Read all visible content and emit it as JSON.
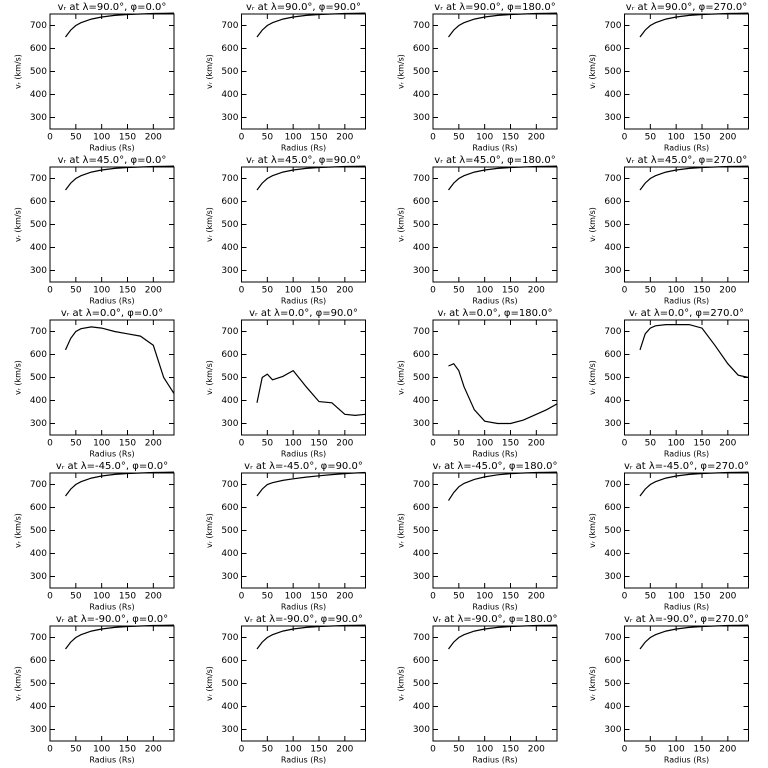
{
  "chart_data": [
    {
      "type": "line",
      "title": "vᵣ at λ=90.0°, φ=0.0°",
      "x_label": "Radius (Rs)",
      "y_label": "vᵣ (km/s)",
      "x": [
        30,
        40,
        50,
        60,
        80,
        100,
        125,
        150,
        175,
        200,
        220,
        240
      ],
      "values": [
        650,
        680,
        700,
        712,
        728,
        737,
        744,
        748,
        750,
        752,
        753,
        754
      ],
      "xlim": [
        0,
        240
      ],
      "ylim": [
        250,
        750
      ],
      "xticks": [
        0,
        50,
        100,
        150,
        200
      ],
      "yticks": [
        300,
        400,
        500,
        600,
        700
      ],
      "color": "#000000"
    },
    {
      "type": "line",
      "title": "vᵣ at λ=90.0°, φ=90.0°",
      "x_label": "Radius (Rs)",
      "y_label": "vᵣ (km/s)",
      "x": [
        30,
        40,
        50,
        60,
        80,
        100,
        125,
        150,
        175,
        200,
        220,
        240
      ],
      "values": [
        650,
        680,
        700,
        712,
        728,
        737,
        744,
        748,
        750,
        752,
        753,
        754
      ],
      "xlim": [
        0,
        240
      ],
      "ylim": [
        250,
        750
      ],
      "xticks": [
        0,
        50,
        100,
        150,
        200
      ],
      "yticks": [
        300,
        400,
        500,
        600,
        700
      ],
      "color": "#000000"
    },
    {
      "type": "line",
      "title": "vᵣ at λ=90.0°, φ=180.0°",
      "x_label": "Radius (Rs)",
      "y_label": "vᵣ (km/s)",
      "x": [
        30,
        40,
        50,
        60,
        80,
        100,
        125,
        150,
        175,
        200,
        220,
        240
      ],
      "values": [
        650,
        680,
        700,
        712,
        728,
        737,
        744,
        748,
        750,
        752,
        753,
        754
      ],
      "xlim": [
        0,
        240
      ],
      "ylim": [
        250,
        750
      ],
      "xticks": [
        0,
        50,
        100,
        150,
        200
      ],
      "yticks": [
        300,
        400,
        500,
        600,
        700
      ],
      "color": "#000000"
    },
    {
      "type": "line",
      "title": "vᵣ at λ=90.0°, φ=270.0°",
      "x_label": "Radius (Rs)",
      "y_label": "vᵣ (km/s)",
      "x": [
        30,
        40,
        50,
        60,
        80,
        100,
        125,
        150,
        175,
        200,
        220,
        240
      ],
      "values": [
        650,
        680,
        700,
        712,
        728,
        737,
        744,
        748,
        750,
        752,
        753,
        754
      ],
      "xlim": [
        0,
        240
      ],
      "ylim": [
        250,
        750
      ],
      "xticks": [
        0,
        50,
        100,
        150,
        200
      ],
      "yticks": [
        300,
        400,
        500,
        600,
        700
      ],
      "color": "#000000"
    },
    {
      "type": "line",
      "title": "vᵣ at λ=45.0°, φ=0.0°",
      "x_label": "Radius (Rs)",
      "y_label": "vᵣ (km/s)",
      "x": [
        30,
        40,
        50,
        60,
        80,
        100,
        125,
        150,
        175,
        200,
        220,
        240
      ],
      "values": [
        650,
        680,
        700,
        712,
        728,
        737,
        744,
        748,
        750,
        752,
        753,
        754
      ],
      "xlim": [
        0,
        240
      ],
      "ylim": [
        250,
        750
      ],
      "xticks": [
        0,
        50,
        100,
        150,
        200
      ],
      "yticks": [
        300,
        400,
        500,
        600,
        700
      ],
      "color": "#000000"
    },
    {
      "type": "line",
      "title": "vᵣ at λ=45.0°, φ=90.0°",
      "x_label": "Radius (Rs)",
      "y_label": "vᵣ (km/s)",
      "x": [
        30,
        40,
        50,
        60,
        80,
        100,
        125,
        150,
        175,
        200,
        220,
        240
      ],
      "values": [
        650,
        680,
        700,
        712,
        728,
        737,
        744,
        748,
        750,
        752,
        753,
        754
      ],
      "xlim": [
        0,
        240
      ],
      "ylim": [
        250,
        750
      ],
      "xticks": [
        0,
        50,
        100,
        150,
        200
      ],
      "yticks": [
        300,
        400,
        500,
        600,
        700
      ],
      "color": "#000000"
    },
    {
      "type": "line",
      "title": "vᵣ at λ=45.0°, φ=180.0°",
      "x_label": "Radius (Rs)",
      "y_label": "vᵣ (km/s)",
      "x": [
        30,
        40,
        50,
        60,
        80,
        100,
        125,
        150,
        175,
        200,
        220,
        240
      ],
      "values": [
        650,
        680,
        700,
        712,
        728,
        737,
        744,
        748,
        750,
        752,
        753,
        754
      ],
      "xlim": [
        0,
        240
      ],
      "ylim": [
        250,
        750
      ],
      "xticks": [
        0,
        50,
        100,
        150,
        200
      ],
      "yticks": [
        300,
        400,
        500,
        600,
        700
      ],
      "color": "#000000"
    },
    {
      "type": "line",
      "title": "vᵣ at λ=45.0°, φ=270.0°",
      "x_label": "Radius (Rs)",
      "y_label": "vᵣ (km/s)",
      "x": [
        30,
        40,
        50,
        60,
        80,
        100,
        125,
        150,
        175,
        200,
        220,
        240
      ],
      "values": [
        650,
        680,
        700,
        712,
        728,
        737,
        744,
        748,
        750,
        752,
        753,
        754
      ],
      "xlim": [
        0,
        240
      ],
      "ylim": [
        250,
        750
      ],
      "xticks": [
        0,
        50,
        100,
        150,
        200
      ],
      "yticks": [
        300,
        400,
        500,
        600,
        700
      ],
      "color": "#000000"
    },
    {
      "type": "line",
      "title": "vᵣ at λ=0.0°, φ=0.0°",
      "x_label": "Radius (Rs)",
      "y_label": "vᵣ (km/s)",
      "x": [
        30,
        40,
        50,
        60,
        80,
        100,
        125,
        150,
        175,
        200,
        220,
        240
      ],
      "values": [
        620,
        670,
        700,
        712,
        720,
        715,
        700,
        690,
        680,
        640,
        500,
        430
      ],
      "xlim": [
        0,
        240
      ],
      "ylim": [
        250,
        750
      ],
      "xticks": [
        0,
        50,
        100,
        150,
        200
      ],
      "yticks": [
        300,
        400,
        500,
        600,
        700
      ],
      "color": "#000000"
    },
    {
      "type": "line",
      "title": "vᵣ at λ=0.0°, φ=90.0°",
      "x_label": "Radius (Rs)",
      "y_label": "vᵣ (km/s)",
      "x": [
        30,
        40,
        50,
        60,
        80,
        100,
        125,
        150,
        175,
        200,
        220,
        240
      ],
      "values": [
        390,
        500,
        515,
        490,
        505,
        530,
        460,
        395,
        390,
        340,
        335,
        340
      ],
      "xlim": [
        0,
        240
      ],
      "ylim": [
        250,
        750
      ],
      "xticks": [
        0,
        50,
        100,
        150,
        200
      ],
      "yticks": [
        300,
        400,
        500,
        600,
        700
      ],
      "color": "#000000"
    },
    {
      "type": "line",
      "title": "vᵣ at λ=0.0°, φ=180.0°",
      "x_label": "Radius (Rs)",
      "y_label": "vᵣ (km/s)",
      "x": [
        30,
        40,
        50,
        60,
        80,
        100,
        125,
        150,
        175,
        200,
        220,
        240
      ],
      "values": [
        550,
        560,
        530,
        460,
        360,
        310,
        300,
        300,
        315,
        340,
        360,
        385
      ],
      "xlim": [
        0,
        240
      ],
      "ylim": [
        250,
        750
      ],
      "xticks": [
        0,
        50,
        100,
        150,
        200
      ],
      "yticks": [
        300,
        400,
        500,
        600,
        700
      ],
      "color": "#000000"
    },
    {
      "type": "line",
      "title": "vᵣ at λ=0.0°, φ=270.0°",
      "x_label": "Radius (Rs)",
      "y_label": "vᵣ (km/s)",
      "x": [
        30,
        40,
        50,
        60,
        80,
        100,
        125,
        150,
        175,
        200,
        220,
        240
      ],
      "values": [
        620,
        690,
        715,
        725,
        730,
        730,
        730,
        715,
        640,
        560,
        510,
        500
      ],
      "xlim": [
        0,
        240
      ],
      "ylim": [
        250,
        750
      ],
      "xticks": [
        0,
        50,
        100,
        150,
        200
      ],
      "yticks": [
        300,
        400,
        500,
        600,
        700
      ],
      "color": "#000000"
    },
    {
      "type": "line",
      "title": "vᵣ at λ=-45.0°, φ=0.0°",
      "x_label": "Radius (Rs)",
      "y_label": "vᵣ (km/s)",
      "x": [
        30,
        40,
        50,
        60,
        80,
        100,
        125,
        150,
        175,
        200,
        220,
        240
      ],
      "values": [
        650,
        680,
        700,
        712,
        728,
        737,
        744,
        748,
        750,
        752,
        753,
        754
      ],
      "xlim": [
        0,
        240
      ],
      "ylim": [
        250,
        750
      ],
      "xticks": [
        0,
        50,
        100,
        150,
        200
      ],
      "yticks": [
        300,
        400,
        500,
        600,
        700
      ],
      "color": "#000000"
    },
    {
      "type": "line",
      "title": "vᵣ at λ=-45.0°, φ=90.0°",
      "x_label": "Radius (Rs)",
      "y_label": "vᵣ (km/s)",
      "x": [
        30,
        40,
        50,
        60,
        80,
        100,
        125,
        150,
        175,
        200,
        220,
        240
      ],
      "values": [
        650,
        680,
        700,
        708,
        718,
        725,
        732,
        738,
        743,
        747,
        750,
        752
      ],
      "xlim": [
        0,
        240
      ],
      "ylim": [
        250,
        750
      ],
      "xticks": [
        0,
        50,
        100,
        150,
        200
      ],
      "yticks": [
        300,
        400,
        500,
        600,
        700
      ],
      "color": "#000000"
    },
    {
      "type": "line",
      "title": "vᵣ at λ=-45.0°, φ=180.0°",
      "x_label": "Radius (Rs)",
      "y_label": "vᵣ (km/s)",
      "x": [
        30,
        40,
        50,
        60,
        80,
        100,
        125,
        150,
        175,
        200,
        220,
        240
      ],
      "values": [
        630,
        665,
        690,
        705,
        722,
        733,
        742,
        747,
        750,
        752,
        753,
        754
      ],
      "xlim": [
        0,
        240
      ],
      "ylim": [
        250,
        750
      ],
      "xticks": [
        0,
        50,
        100,
        150,
        200
      ],
      "yticks": [
        300,
        400,
        500,
        600,
        700
      ],
      "color": "#000000"
    },
    {
      "type": "line",
      "title": "vᵣ at λ=-45.0°, φ=270.0°",
      "x_label": "Radius (Rs)",
      "y_label": "vᵣ (km/s)",
      "x": [
        30,
        40,
        50,
        60,
        80,
        100,
        125,
        150,
        175,
        200,
        220,
        240
      ],
      "values": [
        650,
        680,
        700,
        712,
        728,
        737,
        744,
        748,
        750,
        752,
        753,
        754
      ],
      "xlim": [
        0,
        240
      ],
      "ylim": [
        250,
        750
      ],
      "xticks": [
        0,
        50,
        100,
        150,
        200
      ],
      "yticks": [
        300,
        400,
        500,
        600,
        700
      ],
      "color": "#000000"
    },
    {
      "type": "line",
      "title": "vᵣ at λ=-90.0°, φ=0.0°",
      "x_label": "Radius (Rs)",
      "y_label": "vᵣ (km/s)",
      "x": [
        30,
        40,
        50,
        60,
        80,
        100,
        125,
        150,
        175,
        200,
        220,
        240
      ],
      "values": [
        650,
        680,
        700,
        712,
        728,
        737,
        744,
        748,
        750,
        752,
        753,
        754
      ],
      "xlim": [
        0,
        240
      ],
      "ylim": [
        250,
        750
      ],
      "xticks": [
        0,
        50,
        100,
        150,
        200
      ],
      "yticks": [
        300,
        400,
        500,
        600,
        700
      ],
      "color": "#000000"
    },
    {
      "type": "line",
      "title": "vᵣ at λ=-90.0°, φ=90.0°",
      "x_label": "Radius (Rs)",
      "y_label": "vᵣ (km/s)",
      "x": [
        30,
        40,
        50,
        60,
        80,
        100,
        125,
        150,
        175,
        200,
        220,
        240
      ],
      "values": [
        650,
        680,
        700,
        712,
        728,
        737,
        744,
        748,
        750,
        752,
        753,
        754
      ],
      "xlim": [
        0,
        240
      ],
      "ylim": [
        250,
        750
      ],
      "xticks": [
        0,
        50,
        100,
        150,
        200
      ],
      "yticks": [
        300,
        400,
        500,
        600,
        700
      ],
      "color": "#000000"
    },
    {
      "type": "line",
      "title": "vᵣ at λ=-90.0°, φ=180.0°",
      "x_label": "Radius (Rs)",
      "y_label": "vᵣ (km/s)",
      "x": [
        30,
        40,
        50,
        60,
        80,
        100,
        125,
        150,
        175,
        200,
        220,
        240
      ],
      "values": [
        650,
        680,
        700,
        712,
        728,
        737,
        744,
        748,
        750,
        752,
        753,
        754
      ],
      "xlim": [
        0,
        240
      ],
      "ylim": [
        250,
        750
      ],
      "xticks": [
        0,
        50,
        100,
        150,
        200
      ],
      "yticks": [
        300,
        400,
        500,
        600,
        700
      ],
      "color": "#000000"
    },
    {
      "type": "line",
      "title": "vᵣ at λ=-90.0°, φ=270.0°",
      "x_label": "Radius (Rs)",
      "y_label": "vᵣ (km/s)",
      "x": [
        30,
        40,
        50,
        60,
        80,
        100,
        125,
        150,
        175,
        200,
        220,
        240
      ],
      "values": [
        650,
        680,
        700,
        712,
        728,
        737,
        744,
        748,
        750,
        752,
        753,
        754
      ],
      "xlim": [
        0,
        240
      ],
      "ylim": [
        250,
        750
      ],
      "xticks": [
        0,
        50,
        100,
        150,
        200
      ],
      "yticks": [
        300,
        400,
        500,
        600,
        700
      ],
      "color": "#000000"
    }
  ]
}
